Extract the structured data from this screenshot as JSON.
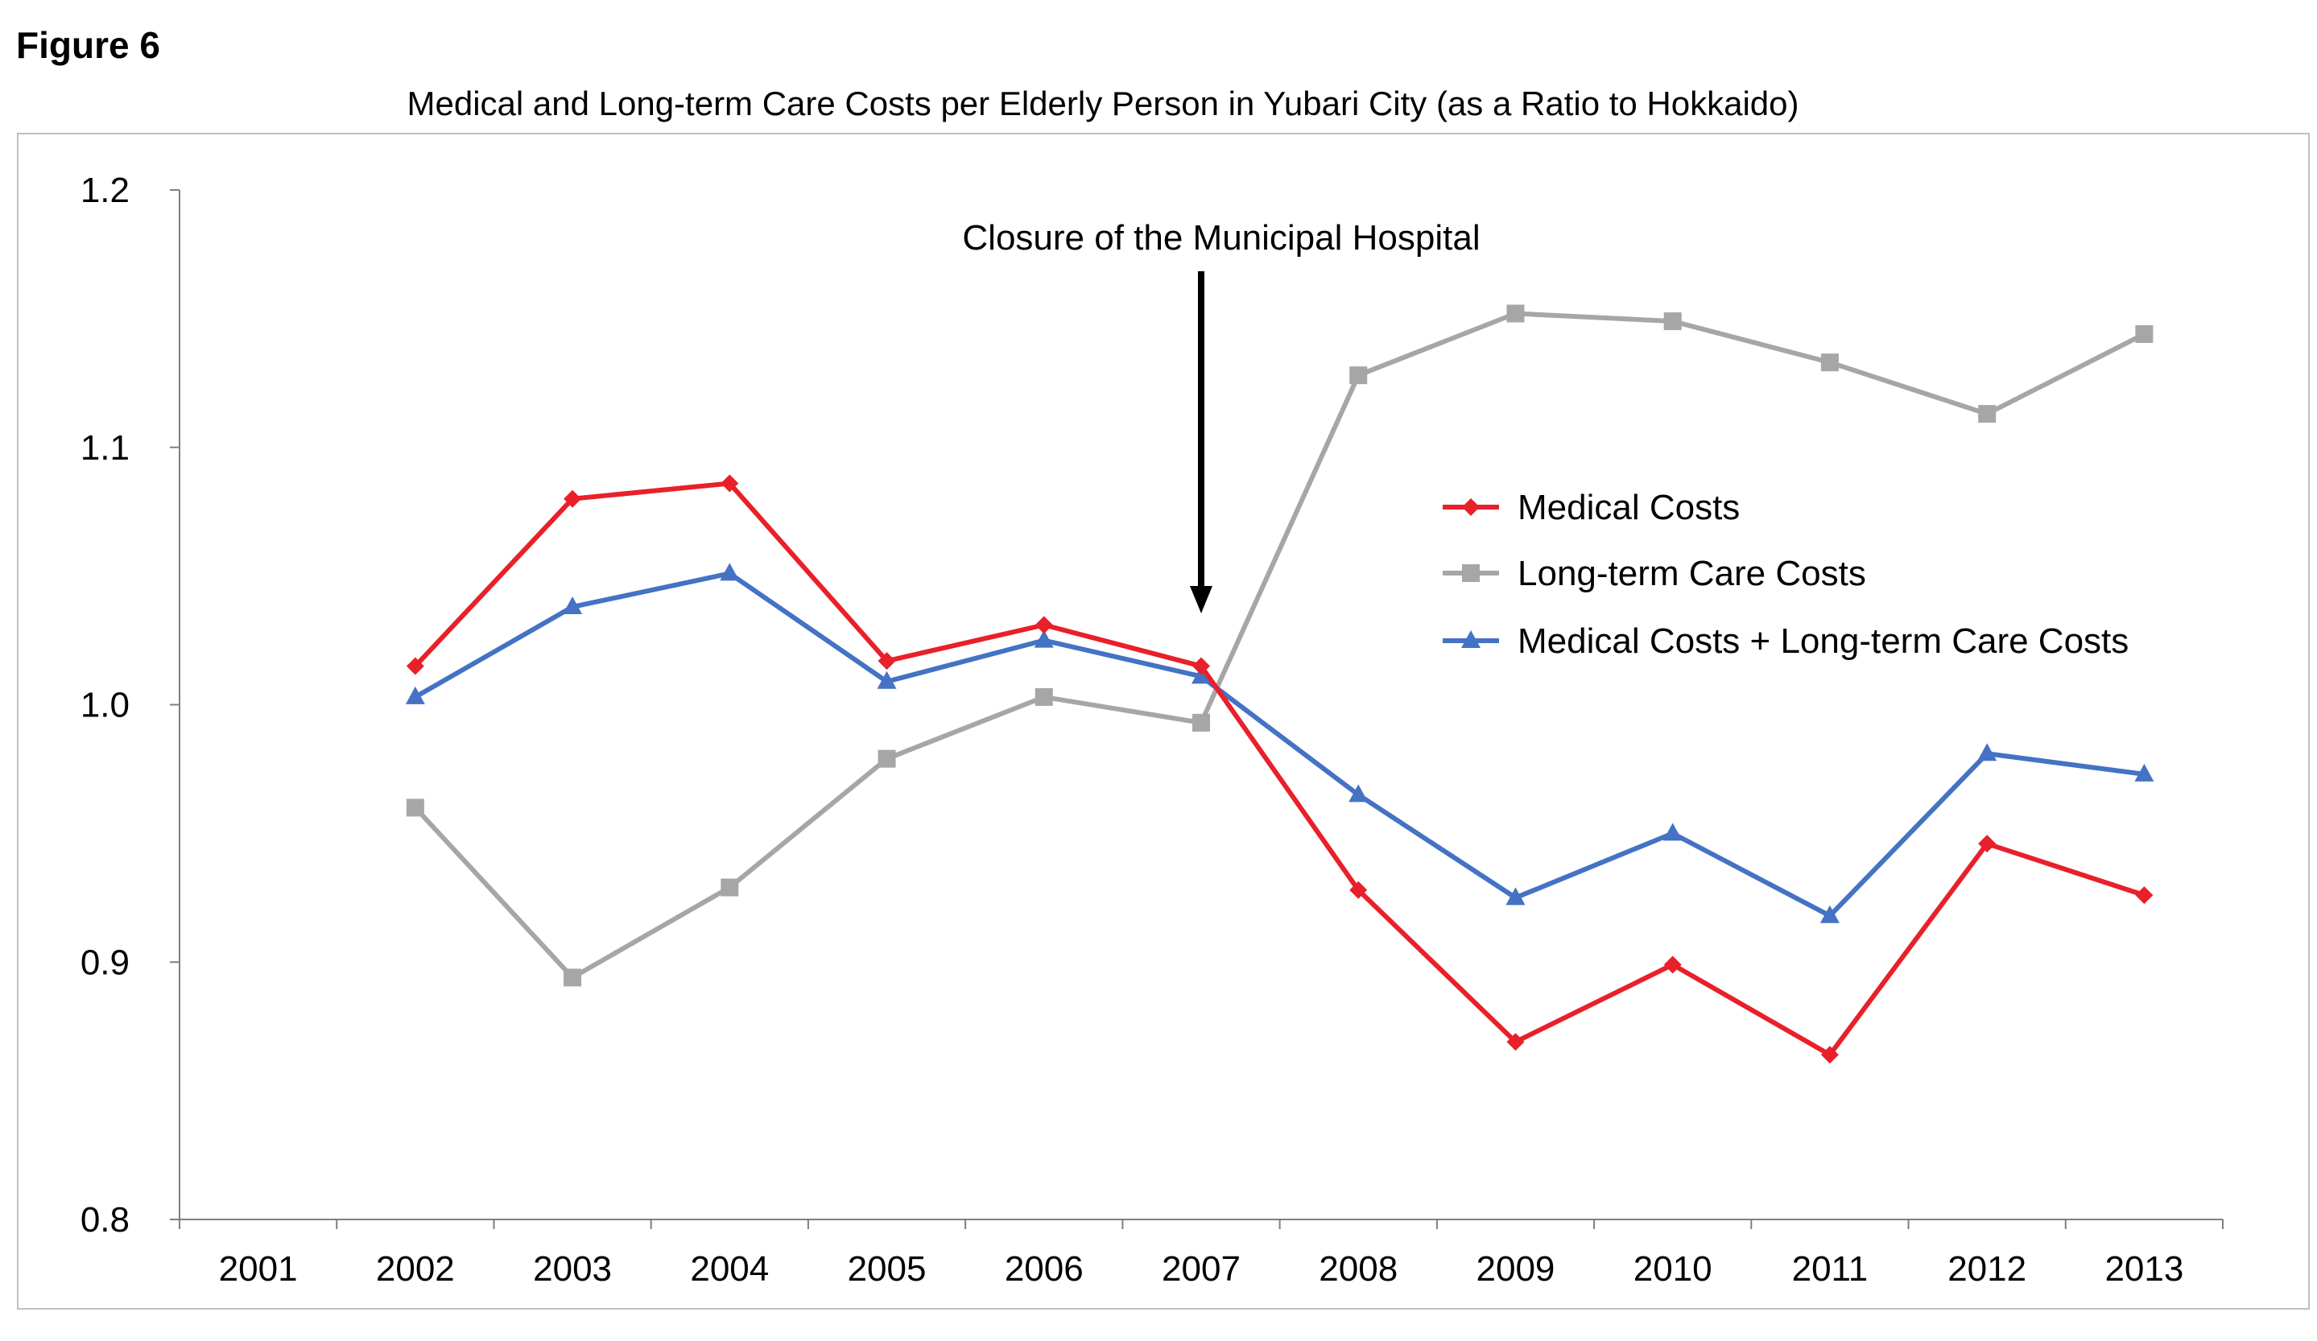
{
  "figure_label": "Figure 6",
  "chart_data": {
    "type": "line",
    "title": "Medical and Long-term Care Costs per Elderly Person in Yubari City (as a Ratio to Hokkaido)",
    "xlabel": "",
    "ylabel": "",
    "categories": [
      "2001",
      "2002",
      "2003",
      "2004",
      "2005",
      "2006",
      "2007",
      "2008",
      "2009",
      "2010",
      "2011",
      "2012",
      "2013"
    ],
    "ylim": [
      0.8,
      1.2
    ],
    "yticks": [
      "0.8",
      "0.9",
      "1.0",
      "1.1",
      "1.2"
    ],
    "grid": false,
    "legend_position": "right",
    "series": [
      {
        "name": "Medical Costs",
        "color": "#e8202a",
        "marker": "diamond",
        "values": [
          null,
          1.015,
          1.08,
          1.086,
          1.017,
          1.031,
          1.015,
          0.928,
          0.869,
          0.899,
          0.864,
          0.946,
          0.926
        ]
      },
      {
        "name": "Long-term Care Costs",
        "color": "#a6a6a6",
        "marker": "square",
        "values": [
          null,
          0.96,
          0.894,
          0.929,
          0.979,
          1.003,
          0.993,
          1.128,
          1.152,
          1.149,
          1.133,
          1.113,
          1.144
        ]
      },
      {
        "name": "Medical Costs + Long-term Care Costs",
        "color": "#4472c4",
        "marker": "triangle",
        "values": [
          null,
          1.003,
          1.038,
          1.051,
          1.009,
          1.025,
          1.011,
          0.965,
          0.925,
          0.95,
          0.918,
          0.981,
          0.973
        ]
      }
    ],
    "annotation": {
      "text": "Closure of the Municipal Hospital",
      "x": "2007",
      "y": 1.0
    }
  }
}
